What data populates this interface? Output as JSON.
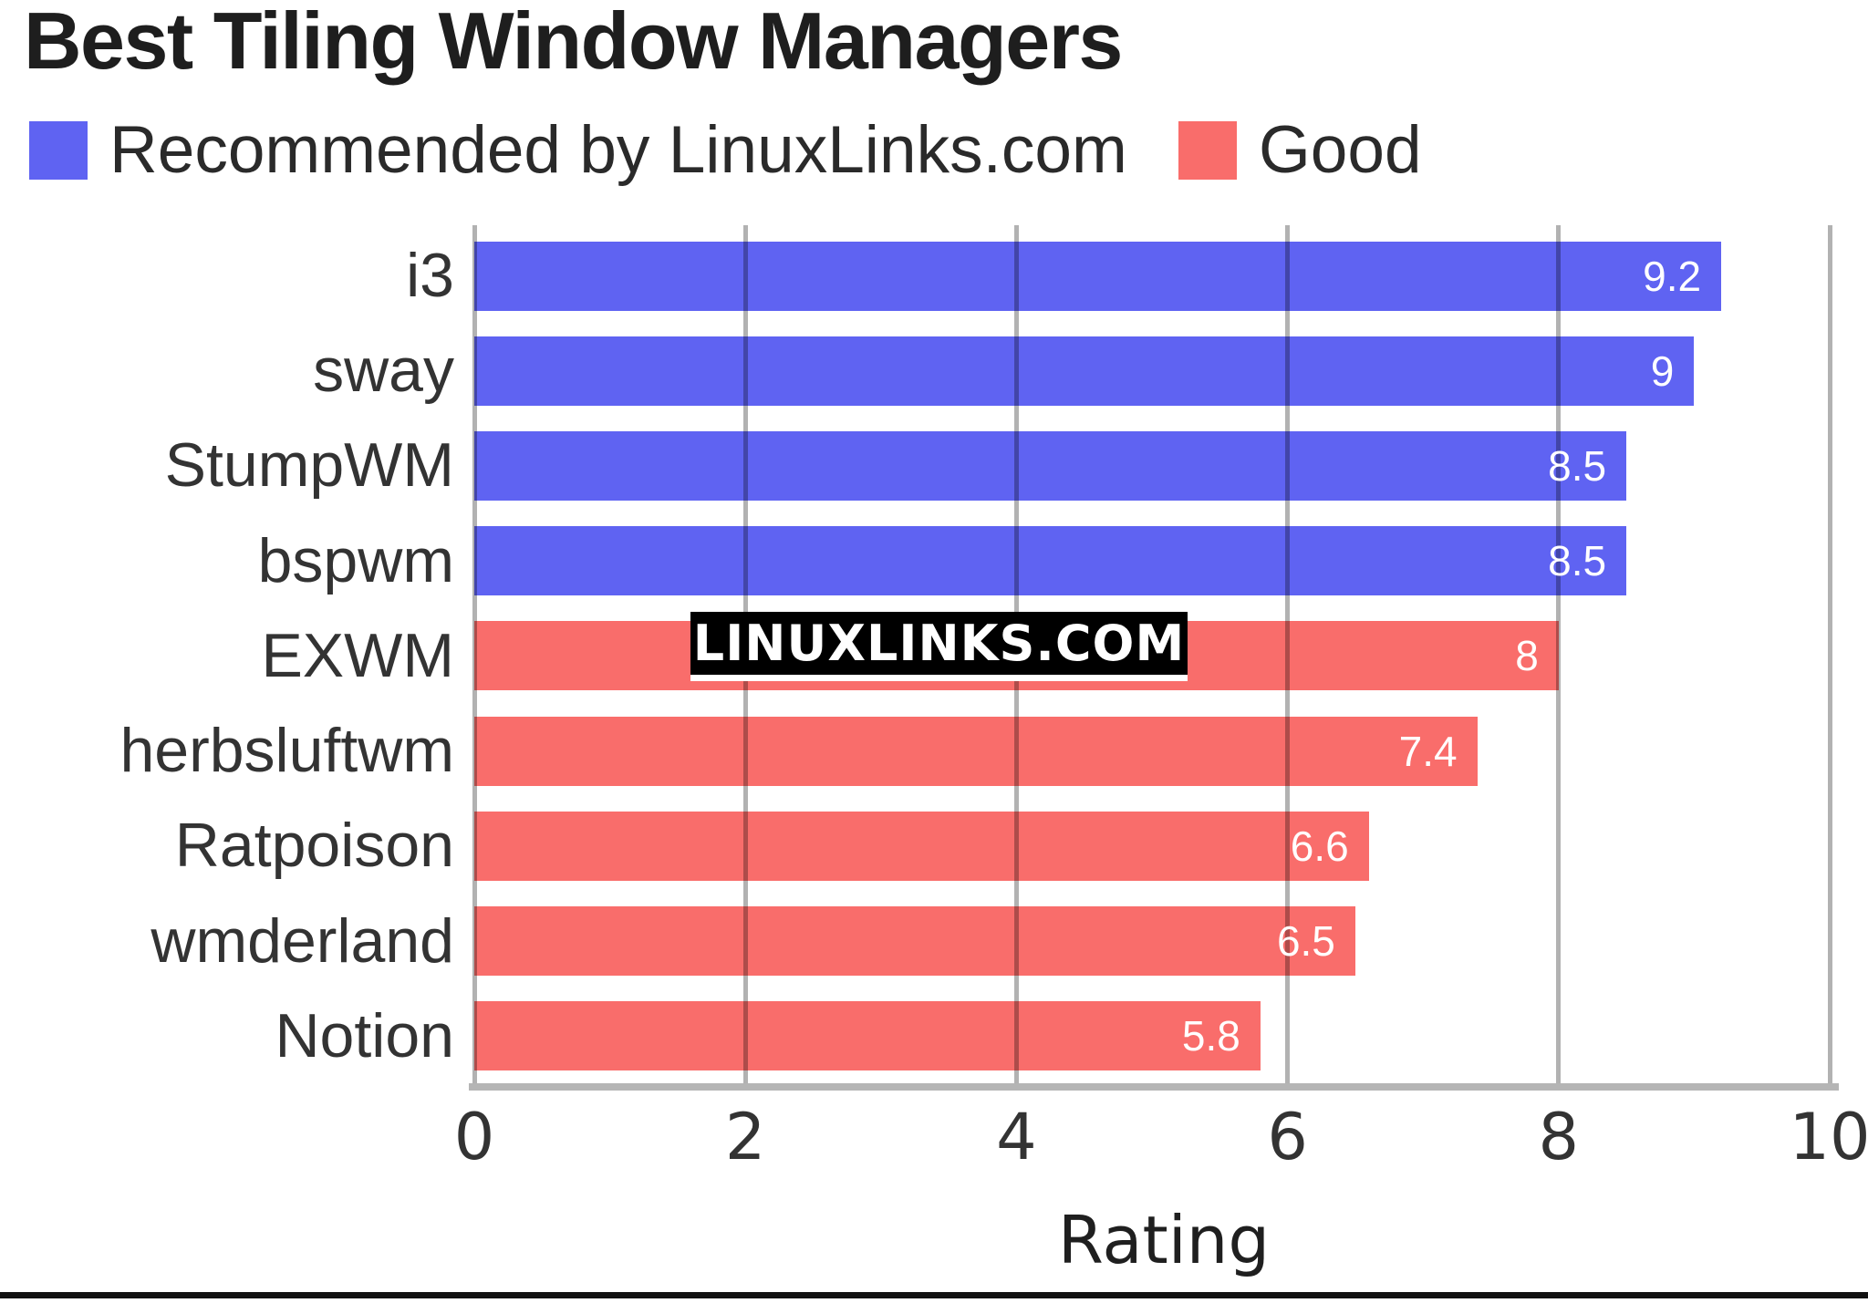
{
  "title": "Best Tiling Window Managers",
  "legend": {
    "items": [
      {
        "label": "Recommended by LinuxLinks.com",
        "color": "#5f63f2",
        "key": "recommended"
      },
      {
        "label": "Good",
        "color": "#f96d6b",
        "key": "good"
      }
    ]
  },
  "watermark": {
    "text": "LINUXLINKS.COM"
  },
  "axis": {
    "xlabel": "Rating"
  },
  "chart_data": {
    "type": "bar",
    "orientation": "horizontal",
    "title": "Best Tiling Window Managers",
    "xlabel": "Rating",
    "ylabel": "",
    "xlim": [
      0,
      10
    ],
    "xticks": [
      "0",
      "2",
      "4",
      "6",
      "8",
      "10"
    ],
    "xtick_values": [
      0,
      2,
      4,
      6,
      8,
      10
    ],
    "grid": true,
    "legend_position": "top",
    "categories": [
      "i3",
      "sway",
      "StumpWM",
      "bspwm",
      "EXWM",
      "herbsluftwm",
      "Ratpoison",
      "wmderland",
      "Notion"
    ],
    "bars": [
      {
        "category": "i3",
        "value": 9.2,
        "label": "9.2",
        "series": "recommended"
      },
      {
        "category": "sway",
        "value": 9,
        "label": "9",
        "series": "recommended"
      },
      {
        "category": "StumpWM",
        "value": 8.5,
        "label": "8.5",
        "series": "recommended"
      },
      {
        "category": "bspwm",
        "value": 8.5,
        "label": "8.5",
        "series": "recommended"
      },
      {
        "category": "EXWM",
        "value": 8,
        "label": "8",
        "series": "good"
      },
      {
        "category": "herbsluftwm",
        "value": 7.4,
        "label": "7.4",
        "series": "good"
      },
      {
        "category": "Ratpoison",
        "value": 6.6,
        "label": "6.6",
        "series": "good"
      },
      {
        "category": "wmderland",
        "value": 6.5,
        "label": "6.5",
        "series": "good"
      },
      {
        "category": "Notion",
        "value": 5.8,
        "label": "5.8",
        "series": "good"
      }
    ],
    "series": [
      {
        "name": "Recommended by LinuxLinks.com",
        "color": "#5f63f2",
        "values": [
          9.2,
          9,
          8.5,
          8.5,
          null,
          null,
          null,
          null,
          null
        ]
      },
      {
        "name": "Good",
        "color": "#f96d6b",
        "values": [
          null,
          null,
          null,
          null,
          8,
          7.4,
          6.6,
          6.5,
          5.8
        ]
      }
    ]
  },
  "colors": {
    "recommended": "#5f63f2",
    "good": "#f96d6b",
    "gridline": "rgba(0,0,0,0.30)",
    "axis_line": "#b5b5b5",
    "label_text": "#333333",
    "title_text": "#1e1e1e",
    "value_label_text": "#ffffff",
    "watermark_bg": "#000000",
    "watermark_text": "#ffffff",
    "bottom_rule": "#111111"
  }
}
